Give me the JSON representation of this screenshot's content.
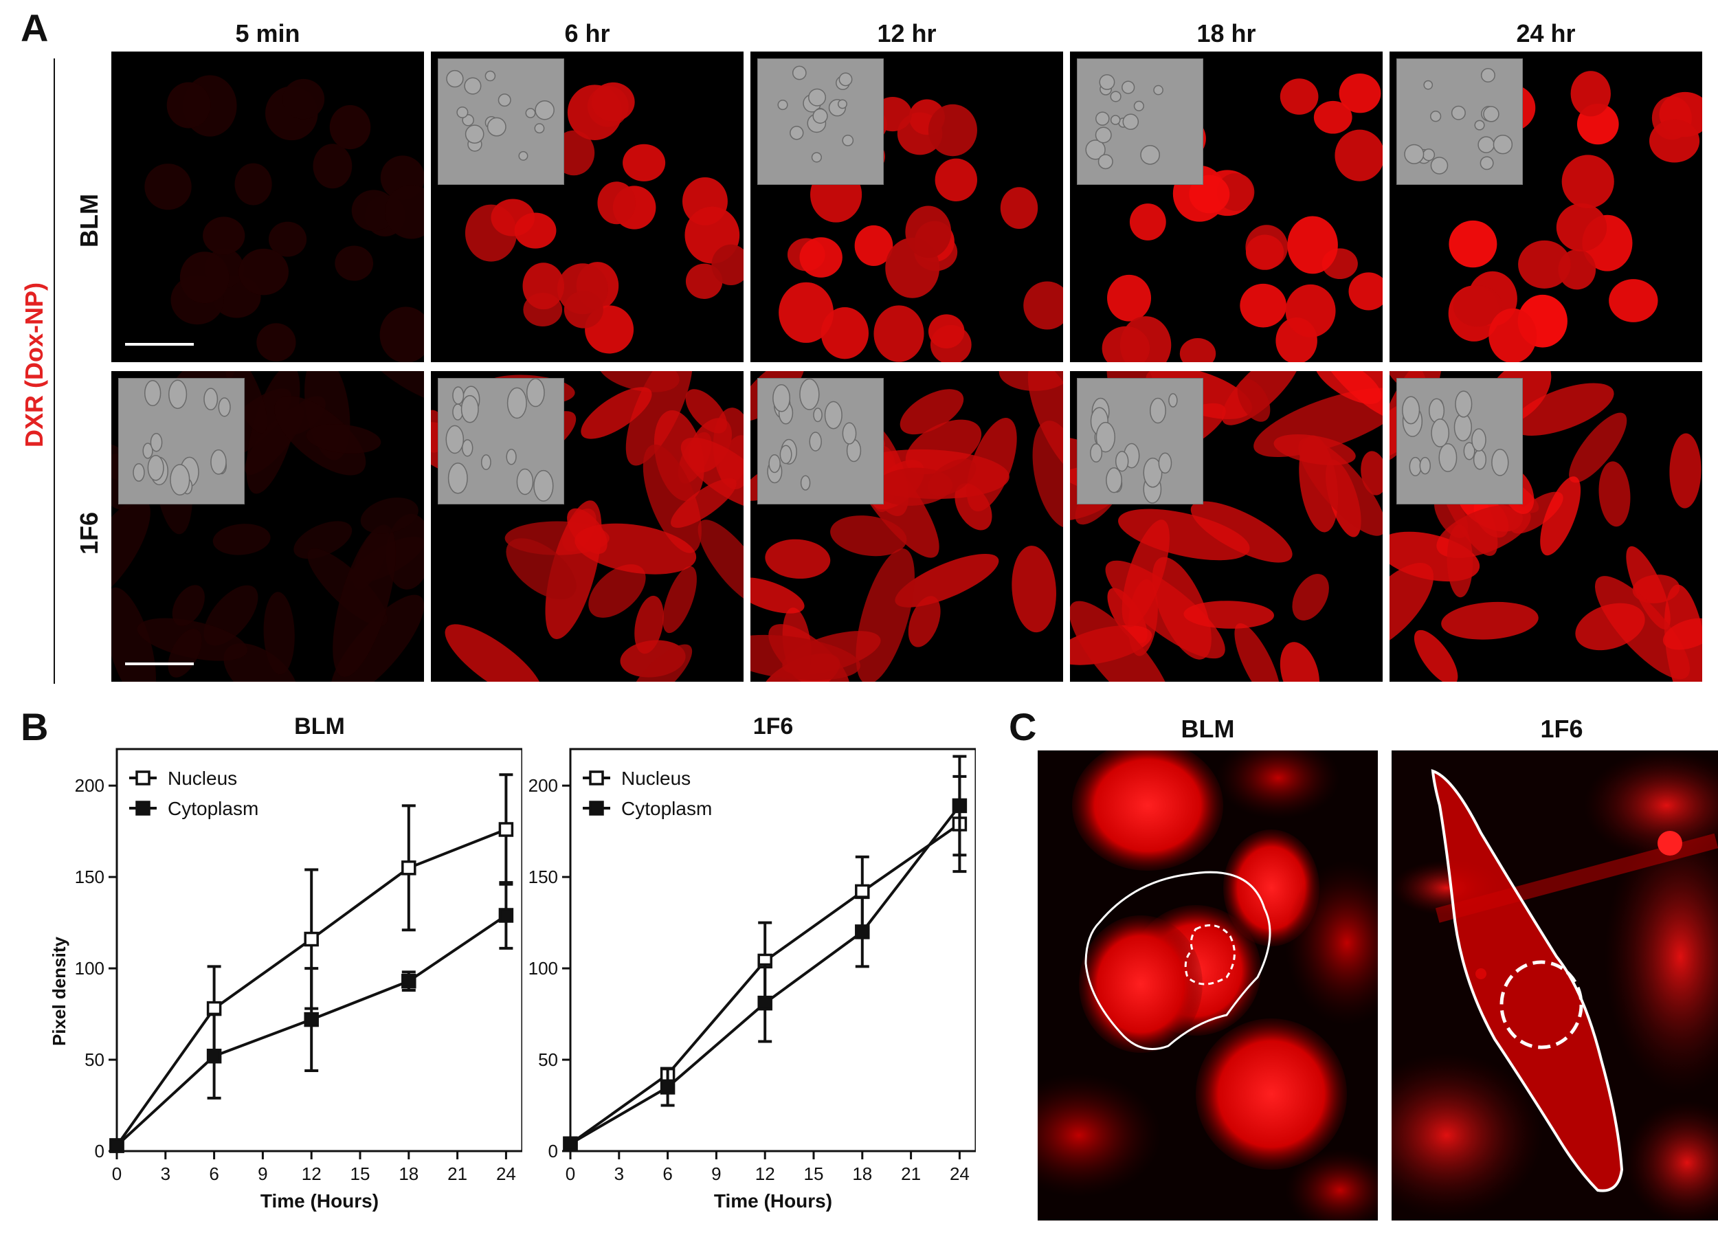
{
  "panels": {
    "a": "A",
    "b": "B",
    "c": "C"
  },
  "panel_a": {
    "side_title": "DXR (Dox-NP)",
    "columns": [
      "5 min",
      "6 hr",
      "12 hr",
      "18 hr",
      "24 hr"
    ],
    "rows": [
      "BLM",
      "1F6"
    ]
  },
  "panel_c": {
    "titles": [
      "BLM",
      "1F6"
    ]
  },
  "colors": {
    "fluorescence": "#ff1a1a",
    "side_title": "#e32222",
    "inset": "#9a9a9a"
  },
  "chart_data": [
    {
      "type": "line",
      "title": "BLM",
      "xlabel": "Time (Hours)",
      "ylabel": "Pixel density",
      "x_ticks": [
        0,
        3,
        6,
        9,
        12,
        15,
        18,
        21,
        24
      ],
      "y_ticks": [
        0,
        50,
        100,
        150,
        200
      ],
      "xlim": [
        0,
        25
      ],
      "ylim": [
        0,
        220
      ],
      "legend_position": "top-left",
      "series": [
        {
          "name": "Nucleus",
          "marker": "open-square",
          "x": [
            0,
            6,
            12,
            18,
            24
          ],
          "y": [
            3,
            78,
            116,
            155,
            176
          ],
          "err": [
            0,
            23,
            38,
            34,
            30
          ]
        },
        {
          "name": "Cytoplasm",
          "marker": "filled-square",
          "x": [
            0,
            6,
            12,
            18,
            24
          ],
          "y": [
            3,
            52,
            72,
            93,
            129
          ],
          "err": [
            0,
            23,
            28,
            5,
            18
          ]
        }
      ]
    },
    {
      "type": "line",
      "title": "1F6",
      "xlabel": "Time (Hours)",
      "ylabel": "",
      "x_ticks": [
        0,
        3,
        6,
        9,
        12,
        15,
        18,
        21,
        24
      ],
      "y_ticks": [
        0,
        50,
        100,
        150,
        200
      ],
      "xlim": [
        0,
        25
      ],
      "ylim": [
        0,
        220
      ],
      "legend_position": "top-left",
      "series": [
        {
          "name": "Nucleus",
          "marker": "open-square",
          "x": [
            0,
            6,
            12,
            18,
            24
          ],
          "y": [
            4,
            42,
            104,
            142,
            179
          ],
          "err": [
            0,
            3,
            21,
            19,
            26
          ]
        },
        {
          "name": "Cytoplasm",
          "marker": "filled-square",
          "x": [
            0,
            6,
            12,
            18,
            24
          ],
          "y": [
            4,
            35,
            81,
            120,
            189
          ],
          "err": [
            0,
            10,
            21,
            19,
            27
          ]
        }
      ]
    }
  ]
}
